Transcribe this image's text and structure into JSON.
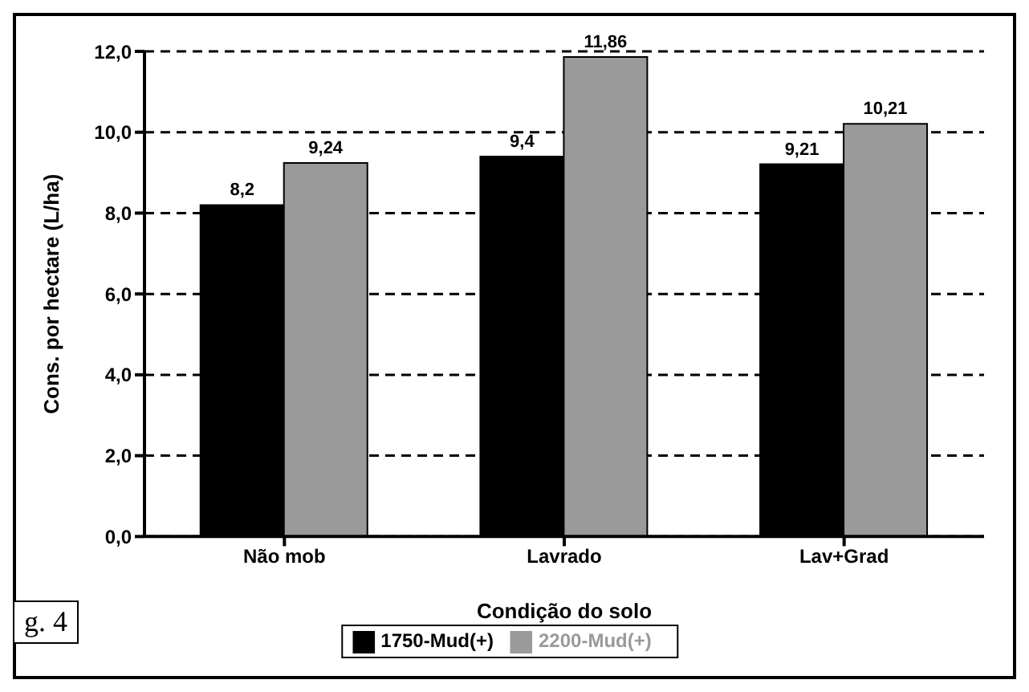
{
  "chart_data": {
    "type": "bar",
    "xlabel": "Condição do solo",
    "ylabel": "Cons. por hectare (L/ha)",
    "categories": [
      "Não mob",
      "Lavrado",
      "Lav+Grad"
    ],
    "series": [
      {
        "name": "1750-Mud(+)",
        "color": "#000000",
        "values": [
          8.2,
          9.4,
          9.21
        ],
        "value_labels": [
          "8,2",
          "9,4",
          "9,21"
        ]
      },
      {
        "name": "2200-Mud(+)",
        "color": "#9a9a9a",
        "values": [
          9.24,
          11.86,
          10.21
        ],
        "value_labels": [
          "9,24",
          "11,86",
          "10,21"
        ]
      }
    ],
    "ylim": [
      0,
      12
    ],
    "yticks": [
      {
        "value": 0,
        "label": "0,0"
      },
      {
        "value": 2,
        "label": "2,0"
      },
      {
        "value": 4,
        "label": "4,0"
      },
      {
        "value": 6,
        "label": "6,0"
      },
      {
        "value": 8,
        "label": "8,0"
      },
      {
        "value": 10,
        "label": "10,0"
      },
      {
        "value": 12,
        "label": "12,0"
      }
    ],
    "grid": "y",
    "legend": "bottom",
    "annotations": [
      "g. 4"
    ]
  }
}
